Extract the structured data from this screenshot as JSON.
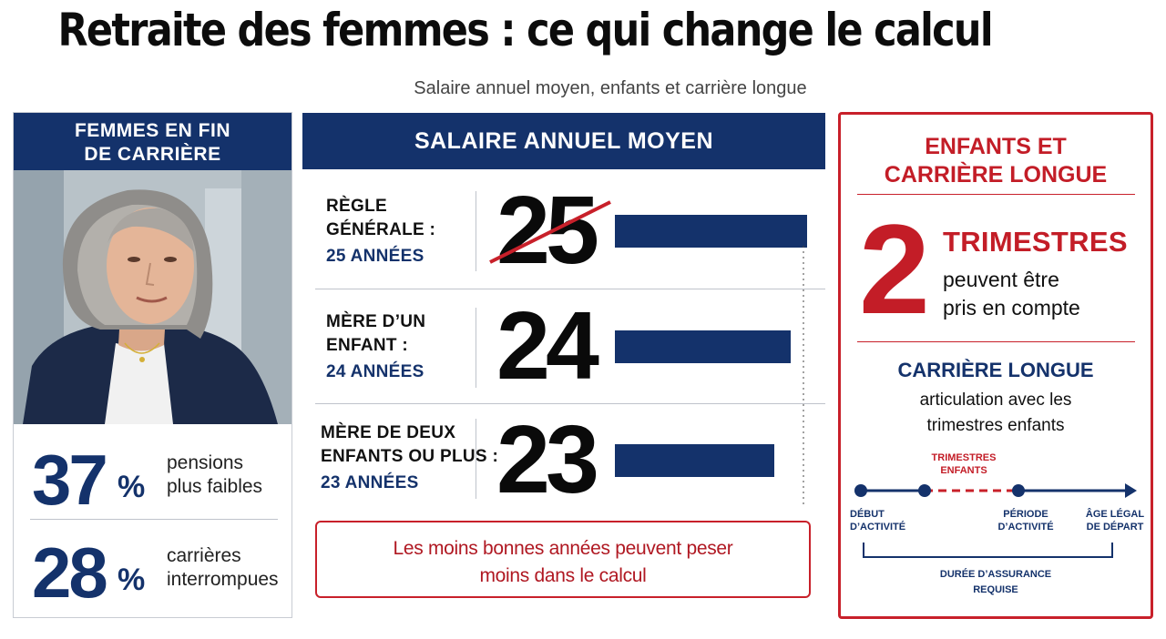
{
  "title": "Retraite des femmes : ce qui change le calcul",
  "subtitle": "Salaire annuel moyen, enfants et carrière longue",
  "left_panel": {
    "header_line1": "FEMMES EN FIN",
    "header_line2": "DE CARRIÈRE",
    "stats": [
      {
        "value": "37",
        "unit": "%",
        "label_line1": "pensions",
        "label_line2": "plus faibles"
      },
      {
        "value": "28",
        "unit": "%",
        "label_line1": "carrières",
        "label_line2": "interrompues"
      }
    ]
  },
  "middle_panel": {
    "header": "SALAIRE ANNUEL MOYEN",
    "rows": [
      {
        "label_line1": "RÈGLE",
        "label_line2": "GÉNÉRALE :",
        "years_label": "25 ANNÉES",
        "number": "25",
        "value": 25
      },
      {
        "label_line1": "MÈRE D’UN",
        "label_line2": "ENFANT :",
        "years_label": "24 ANNÉES",
        "number": "24",
        "value": 24
      },
      {
        "label_line1": "MÈRE DE DEUX",
        "label_line2": "ENFANTS OU PLUS :",
        "years_label": "23 ANNÉES",
        "number": "23",
        "value": 23
      }
    ],
    "note_line1": "Les moins bonnes années peuvent peser",
    "note_line2": "moins dans le calcul"
  },
  "right_panel": {
    "title_line1": "ENFANTS ET",
    "title_line2": "CARRIÈRE LONGUE",
    "big_number": "2",
    "trimestres_label": "TRIMESTRES",
    "trimestres_desc_line1": "peuvent être",
    "trimestres_desc_line2": "pris en compte",
    "carriere_title": "CARRIÈRE LONGUE",
    "carriere_desc_line1": "articulation avec les",
    "carriere_desc_line2": "trimestres enfants",
    "timeline": {
      "enfants_line1": "TRIMESTRES",
      "enfants_line2": "ENFANTS",
      "start_line1": "DÉBUT",
      "start_line2": "D’ACTIVITÉ",
      "period_line1": "PÉRIODE",
      "period_line2": "D’ACTIVITÉ",
      "end_line1": "ÂGE LÉGAL",
      "end_line2": "DE DÉPART",
      "duration_line1": "DURÉE D’ASSURANCE",
      "duration_line2": "REQUISE"
    }
  },
  "colors": {
    "navy": "#14326b",
    "red": "#c31d27",
    "text": "#111111"
  }
}
